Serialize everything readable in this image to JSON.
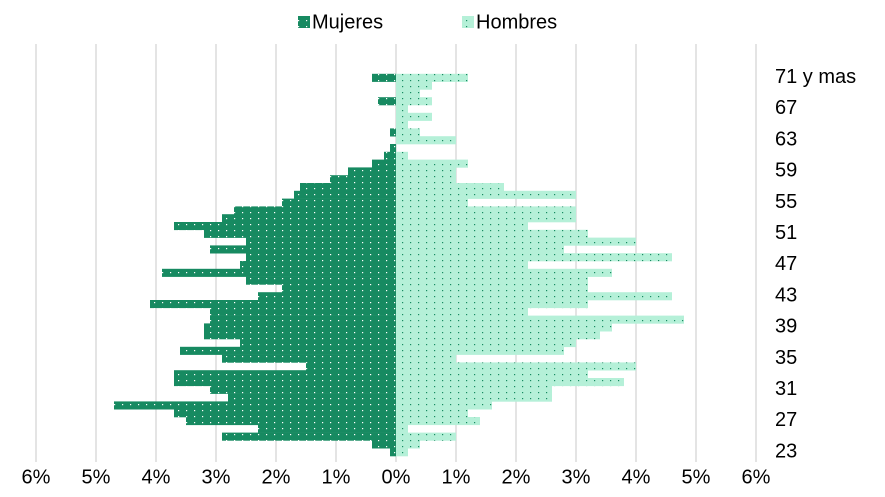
{
  "chart_data": {
    "type": "pyramid",
    "categories": [
      "23",
      null,
      null,
      null,
      "27",
      null,
      null,
      null,
      "31",
      null,
      null,
      null,
      "35",
      null,
      null,
      null,
      "39",
      null,
      null,
      null,
      "43",
      null,
      null,
      null,
      "47",
      null,
      null,
      null,
      "51",
      null,
      null,
      null,
      "55",
      null,
      null,
      null,
      "59",
      null,
      null,
      null,
      "63",
      null,
      null,
      null,
      "67",
      null,
      null,
      null,
      "71 y mas"
    ],
    "series": [
      {
        "name": "Mujeres",
        "color": "#178a61",
        "values": [
          -0.1,
          -0.4,
          -2.9,
          -2.3,
          -3.5,
          -3.7,
          -4.7,
          -2.8,
          -3.1,
          -3.7,
          -3.7,
          -1.5,
          -2.9,
          -3.6,
          -2.6,
          -3.2,
          -3.2,
          -3.1,
          -3.1,
          -4.1,
          -2.3,
          -1.9,
          -2.5,
          -3.9,
          -2.6,
          -2.5,
          -3.1,
          -2.5,
          -3.2,
          -3.7,
          -2.9,
          -2.7,
          -1.9,
          -1.7,
          -1.6,
          -1.1,
          -0.8,
          -0.4,
          -0.2,
          -0.1,
          0,
          -0.1,
          0,
          0,
          0,
          -0.3,
          0,
          0,
          -0.4
        ]
      },
      {
        "name": "Hombres",
        "color": "#b5f0d8",
        "values": [
          0.2,
          0.4,
          1.0,
          0.2,
          1.4,
          1.2,
          1.6,
          2.6,
          2.6,
          3.8,
          3.2,
          4.0,
          1.0,
          2.8,
          3.0,
          3.4,
          3.6,
          4.8,
          2.2,
          3.2,
          4.6,
          3.2,
          3.2,
          3.6,
          2.2,
          4.6,
          2.8,
          4.0,
          3.2,
          2.2,
          3.0,
          3.0,
          1.2,
          3.0,
          1.8,
          1.0,
          1.0,
          1.2,
          0.2,
          0,
          1.0,
          0.4,
          0.2,
          0.6,
          0.2,
          0.6,
          0.4,
          0.6,
          1.2
        ]
      }
    ],
    "xlim": [
      -6,
      6
    ],
    "xticks": [
      {
        "value": -6,
        "label": "6%"
      },
      {
        "value": -5,
        "label": "5%"
      },
      {
        "value": -4,
        "label": "4%"
      },
      {
        "value": -3,
        "label": "3%"
      },
      {
        "value": -2,
        "label": "2%"
      },
      {
        "value": -1,
        "label": "1%"
      },
      {
        "value": 0,
        "label": "0%"
      },
      {
        "value": 1,
        "label": "1%"
      },
      {
        "value": 2,
        "label": "2%"
      },
      {
        "value": 3,
        "label": "3%"
      },
      {
        "value": 4,
        "label": "4%"
      },
      {
        "value": 5,
        "label": "5%"
      },
      {
        "value": 6,
        "label": "6%"
      }
    ],
    "grid": true,
    "legend": "top"
  }
}
